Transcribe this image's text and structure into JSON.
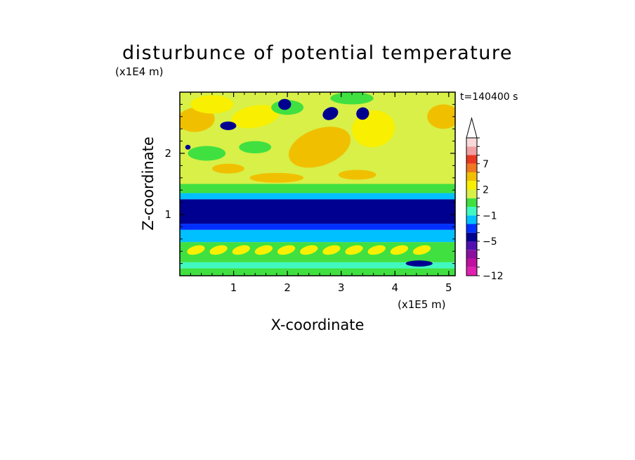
{
  "chart_data": {
    "type": "heatmap",
    "title": "disturbunce of potential temperature",
    "time_label": "t=140400 s",
    "xlabel": "X-coordinate",
    "ylabel": "Z-coordinate",
    "x_scale_label": "(x1E5 m)",
    "y_scale_label": "(x1E4 m)",
    "xlim": [
      0,
      5.12
    ],
    "ylim": [
      0,
      3.0
    ],
    "x_ticks": [
      "1",
      "2",
      "3",
      "4",
      "5"
    ],
    "y_ticks": [
      "1",
      "2"
    ],
    "colorbar": {
      "levels": [
        -12,
        -11,
        -9,
        -7,
        -5,
        -3,
        -2,
        -1,
        0,
        1,
        2,
        3,
        5,
        7,
        9,
        11
      ],
      "labels": [
        "-12",
        "-5",
        "-1",
        "2",
        "7"
      ],
      "colors": [
        "#e020b0",
        "#c010a0",
        "#8a10a0",
        "#5010b0",
        "#000090",
        "#0030ff",
        "#00c0ff",
        "#40f8c0",
        "#40e040",
        "#d8f048",
        "#f8f000",
        "#f0c000",
        "#f07820",
        "#e83820",
        "#f0a0a0",
        "#f8d8d8"
      ],
      "extend": "max"
    },
    "bands": [
      {
        "z_min": 0.0,
        "z_max": 0.12,
        "value": 0.3
      },
      {
        "z_min": 0.12,
        "z_max": 0.22,
        "value": -0.5
      },
      {
        "z_min": 0.22,
        "z_max": 0.55,
        "value": 0.4
      },
      {
        "z_min": 0.55,
        "z_max": 0.75,
        "value": -1.5
      },
      {
        "z_min": 0.75,
        "z_max": 0.85,
        "value": -2.5
      },
      {
        "z_min": 0.85,
        "z_max": 1.25,
        "value": -4.0
      },
      {
        "z_min": 1.25,
        "z_max": 1.35,
        "value": -1.5
      },
      {
        "z_min": 1.35,
        "z_max": 1.5,
        "value": 0.5
      },
      {
        "z_min": 1.5,
        "z_max": 3.0,
        "value": 1.5
      }
    ]
  }
}
